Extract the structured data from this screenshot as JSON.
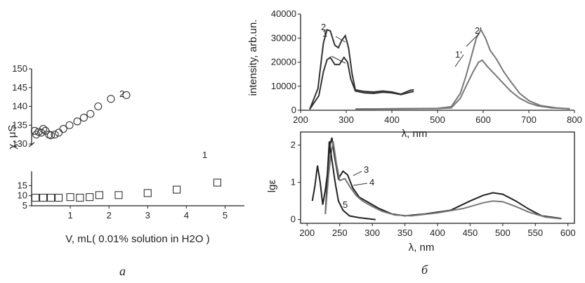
{
  "panel_labels": {
    "a": "а",
    "b": "б"
  },
  "chart_data": [
    {
      "id": "a",
      "type": "scatter",
      "xlabel": "V, mL( 0.01% solution in H2O )",
      "ylabel": "χ, μS",
      "xlim": [
        0,
        5.5
      ],
      "xticks": [
        1,
        2,
        3,
        4,
        5
      ],
      "ylim_top": [
        130,
        150
      ],
      "yticks_top": [
        130,
        135,
        140,
        145,
        150
      ],
      "ylim_bottom": [
        5,
        20
      ],
      "yticks_bottom": [
        5,
        10,
        15
      ],
      "grid": false,
      "series": [
        {
          "name": "2",
          "marker": "circle",
          "panel": "top",
          "points": [
            [
              0.08,
              133.5
            ],
            [
              0.12,
              132.5
            ],
            [
              0.18,
              133.2
            ],
            [
              0.25,
              133.0
            ],
            [
              0.3,
              134.0
            ],
            [
              0.36,
              133.5
            ],
            [
              0.45,
              132.5
            ],
            [
              0.5,
              132.3
            ],
            [
              0.6,
              132.5
            ],
            [
              0.7,
              133.0
            ],
            [
              0.82,
              134.0
            ],
            [
              0.98,
              135.0
            ],
            [
              1.18,
              136.0
            ],
            [
              1.35,
              137.0
            ],
            [
              1.52,
              138.0
            ],
            [
              1.72,
              140.0
            ],
            [
              2.05,
              142.0
            ],
            [
              2.45,
              143.0
            ]
          ]
        },
        {
          "name": "1",
          "marker": "square",
          "panel": "bottom",
          "points": [
            [
              0.1,
              9.0
            ],
            [
              0.3,
              9.0
            ],
            [
              0.5,
              9.0
            ],
            [
              0.7,
              9.0
            ],
            [
              1.0,
              9.3
            ],
            [
              1.25,
              9.0
            ],
            [
              1.5,
              9.3
            ],
            [
              1.75,
              10.3
            ],
            [
              2.25,
              10.3
            ],
            [
              3.0,
              11.3
            ],
            [
              3.75,
              13.0
            ],
            [
              4.8,
              16.5
            ]
          ]
        }
      ],
      "annotations": [
        "1",
        "2"
      ]
    },
    {
      "id": "b-top",
      "type": "line",
      "xlabel": "λ, nm",
      "ylabel": "intensity, arb.un.",
      "xlim": [
        200,
        800
      ],
      "xticks": [
        200,
        300,
        400,
        500,
        600,
        700,
        800
      ],
      "ylim": [
        0,
        40000
      ],
      "yticks": [
        0,
        10000,
        20000,
        30000,
        40000
      ],
      "grid": false,
      "series": [
        {
          "name": "1",
          "color": "#333333",
          "points": [
            [
              220,
              400
            ],
            [
              240,
              6000
            ],
            [
              250,
              16000
            ],
            [
              258,
              21000
            ],
            [
              265,
              22000
            ],
            [
              275,
              19000
            ],
            [
              285,
              19000
            ],
            [
              295,
              22000
            ],
            [
              303,
              20000
            ],
            [
              310,
              13000
            ],
            [
              320,
              8000
            ],
            [
              340,
              7200
            ],
            [
              360,
              7000
            ],
            [
              380,
              7500
            ],
            [
              400,
              7200
            ],
            [
              420,
              6500
            ],
            [
              440,
              7500
            ],
            [
              448,
              7800
            ]
          ]
        },
        {
          "name": "2",
          "color": "#333333",
          "points": [
            [
              220,
              400
            ],
            [
              238,
              9000
            ],
            [
              250,
              28000
            ],
            [
              258,
              33500
            ],
            [
              265,
              33000
            ],
            [
              275,
              27000
            ],
            [
              283,
              26000
            ],
            [
              290,
              29000
            ],
            [
              298,
              31000
            ],
            [
              305,
              26000
            ],
            [
              313,
              15000
            ],
            [
              320,
              8500
            ],
            [
              340,
              7800
            ],
            [
              360,
              7600
            ],
            [
              380,
              8000
            ],
            [
              400,
              7600
            ],
            [
              420,
              6700
            ],
            [
              440,
              8300
            ],
            [
              448,
              8500
            ]
          ]
        },
        {
          "name": "1'",
          "color": "#777777",
          "points": [
            [
              320,
              500
            ],
            [
              400,
              600
            ],
            [
              500,
              700
            ],
            [
              530,
              1000
            ],
            [
              550,
              5000
            ],
            [
              565,
              11000
            ],
            [
              578,
              16000
            ],
            [
              590,
              20000
            ],
            [
              598,
              20800
            ],
            [
              610,
              18000
            ],
            [
              625,
              15000
            ],
            [
              640,
              12000
            ],
            [
              660,
              8000
            ],
            [
              680,
              5000
            ],
            [
              700,
              3000
            ],
            [
              720,
              1800
            ],
            [
              750,
              1000
            ],
            [
              790,
              600
            ]
          ]
        },
        {
          "name": "2'",
          "color": "#777777",
          "points": [
            [
              320,
              500
            ],
            [
              400,
              600
            ],
            [
              500,
              800
            ],
            [
              530,
              1500
            ],
            [
              550,
              7000
            ],
            [
              562,
              14000
            ],
            [
              575,
              23000
            ],
            [
              585,
              30000
            ],
            [
              595,
              33500
            ],
            [
              605,
              30000
            ],
            [
              615,
              25000
            ],
            [
              630,
              21000
            ],
            [
              645,
              16000
            ],
            [
              660,
              12000
            ],
            [
              680,
              7000
            ],
            [
              700,
              4000
            ],
            [
              725,
              2000
            ],
            [
              760,
              1000
            ],
            [
              790,
              600
            ]
          ]
        }
      ],
      "annotations": [
        "1",
        "2",
        "1'",
        "2'"
      ]
    },
    {
      "id": "b-bottom",
      "type": "line",
      "xlabel": "λ, nm",
      "ylabel": "lgε",
      "xlim": [
        190,
        610
      ],
      "xticks": [
        200,
        250,
        300,
        350,
        400,
        450,
        500,
        550,
        600
      ],
      "ylim": [
        -0.1,
        2.35
      ],
      "yticks": [
        0,
        1,
        2
      ],
      "grid": false,
      "series": [
        {
          "name": "3",
          "color": "#222222",
          "points": [
            [
              228,
              0.15
            ],
            [
              232,
              1.4
            ],
            [
              235,
              2.0
            ],
            [
              238,
              2.2
            ],
            [
              242,
              1.7
            ],
            [
              248,
              1.1
            ],
            [
              255,
              1.3
            ],
            [
              262,
              1.2
            ],
            [
              270,
              0.85
            ],
            [
              280,
              0.6
            ],
            [
              295,
              0.45
            ],
            [
              310,
              0.3
            ],
            [
              330,
              0.15
            ],
            [
              350,
              0.1
            ],
            [
              380,
              0.15
            ],
            [
              420,
              0.25
            ],
            [
              450,
              0.5
            ],
            [
              470,
              0.65
            ],
            [
              485,
              0.72
            ],
            [
              500,
              0.68
            ],
            [
              520,
              0.5
            ],
            [
              540,
              0.28
            ],
            [
              560,
              0.1
            ],
            [
              590,
              0.03
            ]
          ]
        },
        {
          "name": "4",
          "color": "#777777",
          "points": [
            [
              228,
              0.15
            ],
            [
              233,
              1.2
            ],
            [
              237,
              1.8
            ],
            [
              240,
              2.1
            ],
            [
              245,
              1.5
            ],
            [
              250,
              1.05
            ],
            [
              258,
              1.1
            ],
            [
              265,
              0.9
            ],
            [
              275,
              0.65
            ],
            [
              285,
              0.5
            ],
            [
              300,
              0.35
            ],
            [
              315,
              0.22
            ],
            [
              335,
              0.12
            ],
            [
              360,
              0.1
            ],
            [
              400,
              0.18
            ],
            [
              440,
              0.3
            ],
            [
              470,
              0.45
            ],
            [
              485,
              0.5
            ],
            [
              500,
              0.48
            ],
            [
              520,
              0.35
            ],
            [
              540,
              0.2
            ],
            [
              565,
              0.07
            ],
            [
              590,
              0.02
            ]
          ]
        },
        {
          "name": "5",
          "color": "#222222",
          "points": [
            [
              208,
              0.5
            ],
            [
              212,
              0.9
            ],
            [
              216,
              1.45
            ],
            [
              220,
              1.0
            ],
            [
              224,
              0.4
            ],
            [
              228,
              0.8
            ],
            [
              231,
              1.2
            ],
            [
              234,
              2.1
            ],
            [
              238,
              1.6
            ],
            [
              243,
              1.0
            ],
            [
              248,
              0.5
            ],
            [
              255,
              0.25
            ],
            [
              265,
              0.1
            ],
            [
              280,
              0.05
            ],
            [
              295,
              0.02
            ],
            [
              305,
              0.0
            ]
          ]
        }
      ],
      "annotations": [
        "3",
        "4",
        "5"
      ]
    }
  ]
}
